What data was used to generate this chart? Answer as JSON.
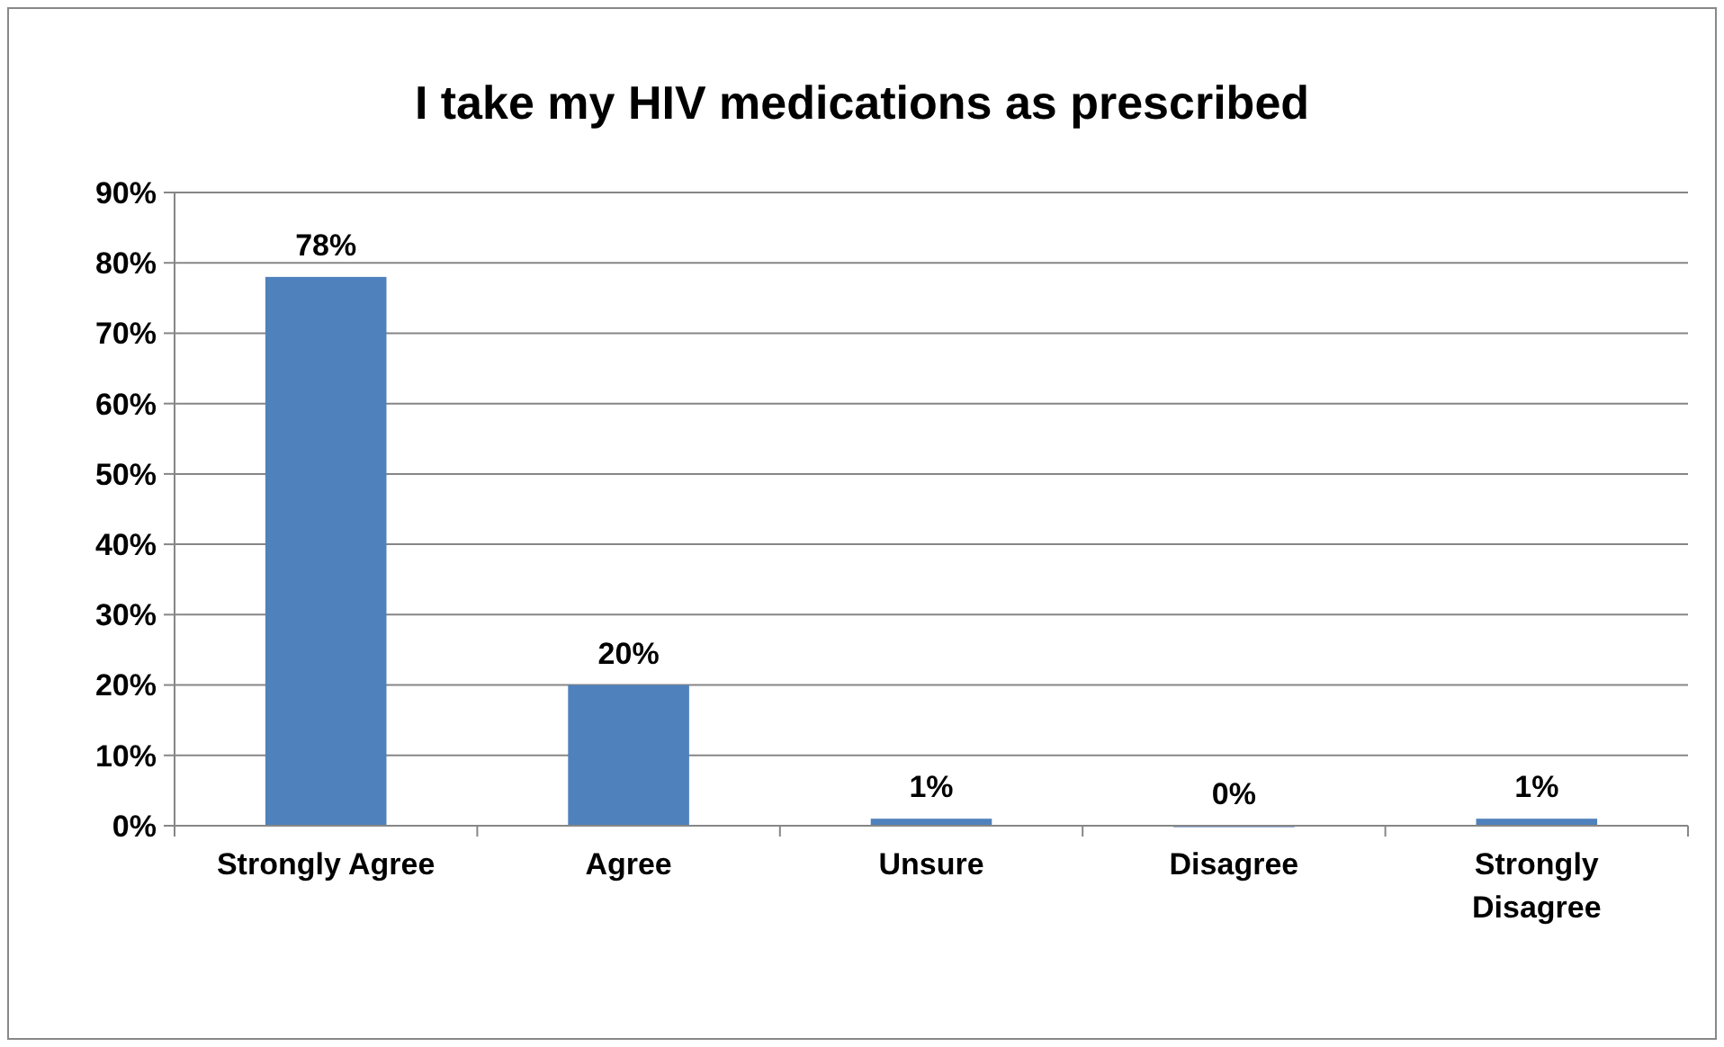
{
  "chart_data": {
    "type": "bar",
    "title": "I take my HIV medications as prescribed",
    "categories": [
      "Strongly Agree",
      "Agree",
      "Unsure",
      "Disagree",
      "Strongly Disagree"
    ],
    "values": [
      78,
      20,
      1,
      0,
      1
    ],
    "color": "#4f81bd",
    "value_labels": [
      "78%",
      "20%",
      "1%",
      "0%",
      "1%"
    ],
    "ylim": [
      0,
      90
    ],
    "yticks": [
      {
        "value": 0,
        "label": "0%"
      },
      {
        "value": 10,
        "label": "10%"
      },
      {
        "value": 20,
        "label": "20%"
      },
      {
        "value": 30,
        "label": "30%"
      },
      {
        "value": 40,
        "label": "40%"
      },
      {
        "value": 50,
        "label": "50%"
      },
      {
        "value": 60,
        "label": "60%"
      },
      {
        "value": 70,
        "label": "70%"
      },
      {
        "value": 80,
        "label": "80%"
      },
      {
        "value": 90,
        "label": "90%"
      }
    ],
    "grid": "y"
  }
}
